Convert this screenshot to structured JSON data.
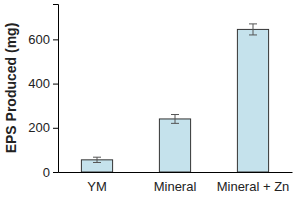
{
  "chart_data": {
    "type": "bar",
    "y_label": "EPS Produced (mg)",
    "categories": [
      "YM",
      "Mineral",
      "Mineral + Zn"
    ],
    "values": [
      55,
      240,
      645
    ],
    "errors": [
      12,
      20,
      25
    ],
    "color": "#c5e2ec",
    "ylim": [
      0,
      760
    ],
    "yticks": [
      0,
      200,
      400,
      600
    ],
    "grid": false
  }
}
